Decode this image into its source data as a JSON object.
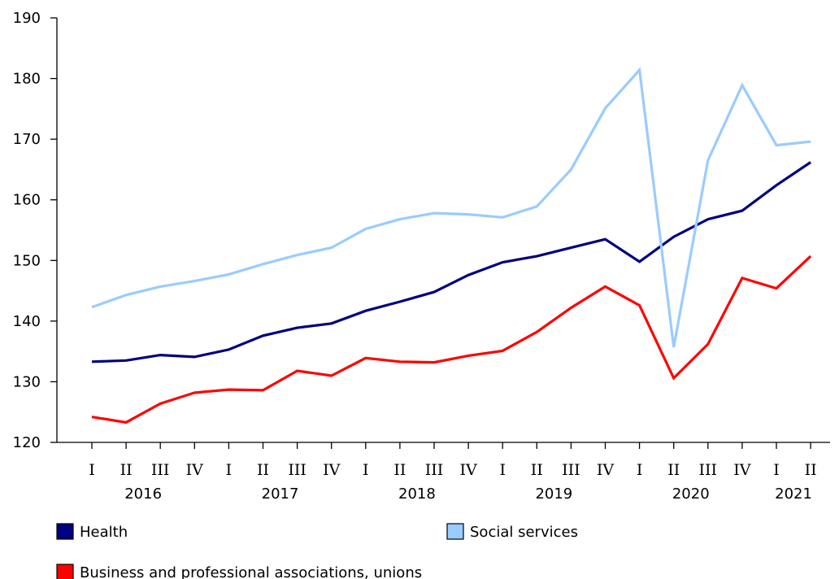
{
  "chart_data": {
    "type": "line",
    "title": "",
    "xlabel": "",
    "ylabel": "",
    "ylim": [
      120,
      190
    ],
    "yticks": [
      120,
      130,
      140,
      150,
      160,
      170,
      180,
      190
    ],
    "grid": false,
    "legend_placement": "bottom",
    "categories": [
      "I",
      "II",
      "III",
      "IV",
      "I",
      "II",
      "III",
      "IV",
      "I",
      "II",
      "III",
      "IV",
      "I",
      "II",
      "III",
      "IV",
      "I",
      "II",
      "III",
      "IV",
      "I",
      "II"
    ],
    "years": [
      {
        "label": "2016",
        "start": 0,
        "end": 3
      },
      {
        "label": "2017",
        "start": 4,
        "end": 7
      },
      {
        "label": "2018",
        "start": 8,
        "end": 11
      },
      {
        "label": "2019",
        "start": 12,
        "end": 15
      },
      {
        "label": "2020",
        "start": 16,
        "end": 19
      },
      {
        "label": "2021",
        "start": 20,
        "end": 21
      }
    ],
    "series": [
      {
        "name": "Health",
        "color": "#000080",
        "values": [
          133.3,
          133.5,
          134.4,
          134.1,
          135.3,
          137.6,
          138.9,
          139.6,
          141.7,
          143.2,
          144.8,
          147.6,
          149.7,
          150.7,
          152.1,
          153.5,
          149.8,
          153.9,
          156.8,
          158.2,
          162.4,
          166.2
        ]
      },
      {
        "name": "Social services",
        "color": "#99CCFF",
        "values": [
          142.3,
          144.3,
          145.7,
          146.6,
          147.7,
          149.4,
          150.9,
          152.1,
          155.2,
          156.8,
          157.8,
          157.6,
          157.1,
          158.9,
          165.0,
          175.1,
          181.4,
          135.7,
          166.5,
          178.9,
          169.0,
          169.6
        ]
      },
      {
        "name": "Business and professional associations, unions",
        "color": "#FF0000",
        "values": [
          124.2,
          123.3,
          126.4,
          128.2,
          128.7,
          128.6,
          131.8,
          131.0,
          133.9,
          133.3,
          133.2,
          134.3,
          135.1,
          138.2,
          142.2,
          145.7,
          142.6,
          130.6,
          136.2,
          147.1,
          145.4,
          150.7
        ]
      }
    ]
  }
}
